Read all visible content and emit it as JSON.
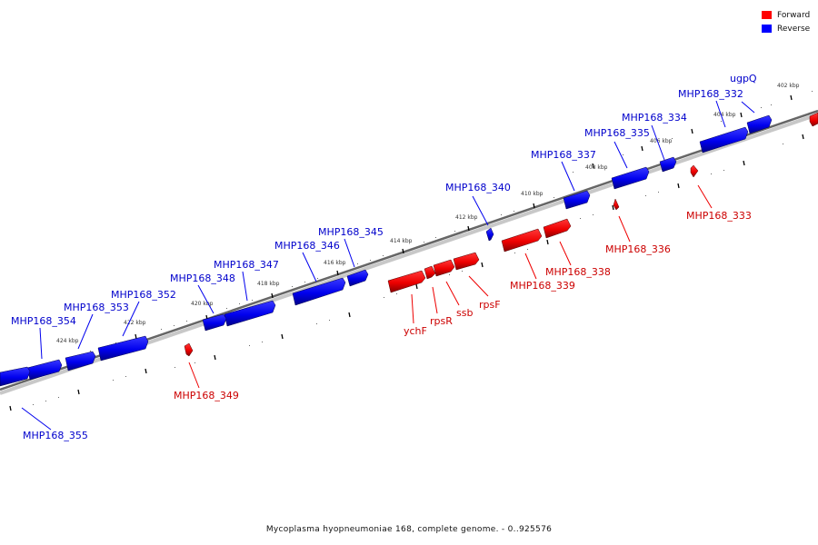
{
  "legend": {
    "forward_label": "Forward",
    "reverse_label": "Reverse",
    "forward_color": "#ff0000",
    "reverse_color": "#0000ff"
  },
  "caption": "Mycoplasma hyopneumoniae 168, complete genome. - 0..925576",
  "ticks": [
    "402 kbp",
    "404 kbp",
    "406 kbp",
    "408 kbp",
    "410 kbp",
    "412 kbp",
    "414 kbp",
    "416 kbp",
    "418 kbp",
    "420 kbp",
    "422 kbp",
    "424 kbp"
  ],
  "genes": [
    {
      "name": "MHP168_332",
      "strand": "reverse"
    },
    {
      "name": "ugpQ",
      "strand": "reverse"
    },
    {
      "name": "MHP168_334",
      "strand": "reverse"
    },
    {
      "name": "MHP168_335",
      "strand": "reverse"
    },
    {
      "name": "MHP168_337",
      "strand": "reverse"
    },
    {
      "name": "MHP168_340",
      "strand": "reverse"
    },
    {
      "name": "MHP168_345",
      "strand": "reverse"
    },
    {
      "name": "MHP168_346",
      "strand": "reverse"
    },
    {
      "name": "MHP168_347",
      "strand": "reverse"
    },
    {
      "name": "MHP168_348",
      "strand": "reverse"
    },
    {
      "name": "MHP168_352",
      "strand": "reverse"
    },
    {
      "name": "MHP168_353",
      "strand": "reverse"
    },
    {
      "name": "MHP168_354",
      "strand": "reverse"
    },
    {
      "name": "MHP168_355",
      "strand": "reverse"
    },
    {
      "name": "MHP168_333",
      "strand": "forward"
    },
    {
      "name": "MHP168_336",
      "strand": "forward"
    },
    {
      "name": "MHP168_338",
      "strand": "forward"
    },
    {
      "name": "MHP168_339",
      "strand": "forward"
    },
    {
      "name": "rpsF",
      "strand": "forward"
    },
    {
      "name": "ssb",
      "strand": "forward"
    },
    {
      "name": "rpsR",
      "strand": "forward"
    },
    {
      "name": "ychF",
      "strand": "forward"
    },
    {
      "name": "MHP168_349",
      "strand": "forward"
    }
  ]
}
